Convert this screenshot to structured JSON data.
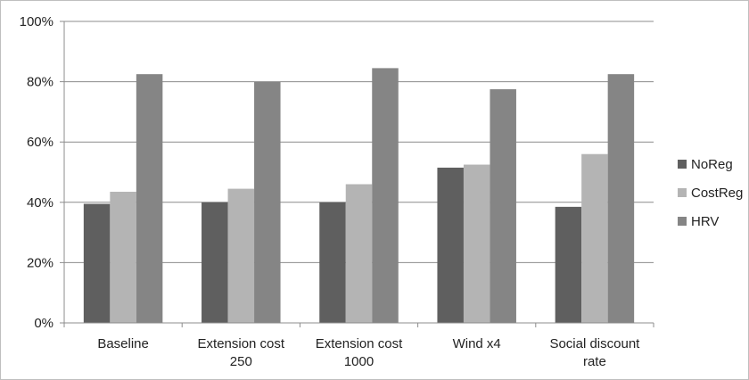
{
  "chart_data": {
    "type": "bar",
    "y_tick_labels": [
      "0%",
      "20%",
      "40%",
      "60%",
      "80%",
      "100%"
    ],
    "ylim": [
      0,
      100
    ],
    "grid": true,
    "legend_position": "right",
    "categories": [
      [
        "Baseline"
      ],
      [
        "Extension cost",
        "250"
      ],
      [
        "Extension cost",
        "1000"
      ],
      [
        "Wind x4"
      ],
      [
        "Social discount",
        "rate"
      ]
    ],
    "series": [
      {
        "name": "NoReg",
        "color": "#5f5f5f",
        "values": [
          39.5,
          40,
          40,
          51.5,
          38.5
        ]
      },
      {
        "name": "CostReg",
        "color": "#b4b4b4",
        "values": [
          43.5,
          44.5,
          46,
          52.5,
          56
        ]
      },
      {
        "name": "HRV",
        "color": "#858585",
        "values": [
          82.5,
          80,
          84.5,
          77.5,
          82.5
        ]
      }
    ]
  }
}
